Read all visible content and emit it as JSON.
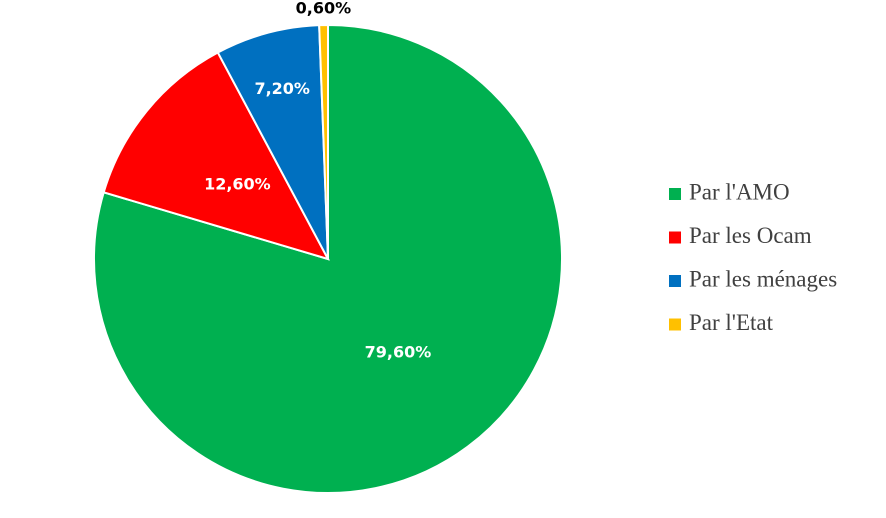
{
  "chart_data": {
    "type": "pie",
    "categories": [
      "Par l'AMO",
      "Par les Ocam",
      "Par les ménages",
      "Par l'Etat"
    ],
    "values": [
      79.6,
      12.6,
      7.2,
      0.6
    ],
    "value_labels": [
      "79,60%",
      "12,60%",
      "7,20%",
      "0,60%"
    ],
    "colors": [
      "#00b050",
      "#ff0000",
      "#0070c0",
      "#ffc000"
    ],
    "legend": "right"
  }
}
